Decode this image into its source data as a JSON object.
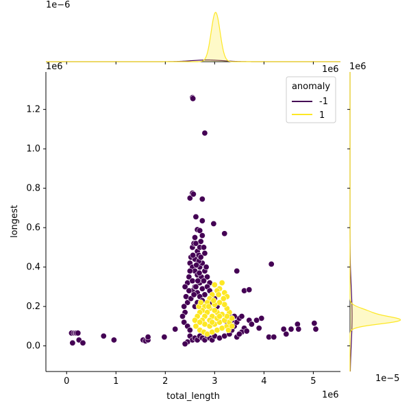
{
  "chart_data": {
    "type": "scatter",
    "title": "",
    "xlabel": "total_length",
    "ylabel": "longest",
    "x_offset_label": "1e6",
    "y_offset_label": "1e6",
    "top_marginal_offset_label": "1e−6",
    "right_top_offset_label": "1e6",
    "right_marginal_offset_label": "1e−5",
    "top_right_offset_label": "1e6",
    "xlim": [
      -0.42,
      5.55
    ],
    "ylim": [
      -0.13,
      1.39
    ],
    "x_ticks": [
      0,
      1,
      2,
      3,
      4,
      5
    ],
    "x_tick_labels": [
      "0",
      "1",
      "2",
      "3",
      "4",
      "5"
    ],
    "y_ticks": [
      0.0,
      0.2,
      0.4,
      0.6,
      0.8,
      1.0,
      1.2
    ],
    "y_tick_labels": [
      "0.0",
      "0.2",
      "0.4",
      "0.6",
      "0.8",
      "1.0",
      "1.2"
    ],
    "grid": false,
    "legend": {
      "title": "anomaly",
      "placement": "top-right",
      "entries": [
        {
          "label": "-1",
          "color": "#440154"
        },
        {
          "label": "1",
          "color": "#fde725"
        }
      ]
    },
    "series": [
      {
        "name": "-1",
        "color": "#440154",
        "points": [
          [
            0.1,
            0.065
          ],
          [
            0.12,
            0.015
          ],
          [
            0.15,
            0.065
          ],
          [
            0.18,
            0.065
          ],
          [
            0.2,
            0.065
          ],
          [
            0.23,
            0.065
          ],
          [
            0.25,
            0.03
          ],
          [
            0.33,
            0.015
          ],
          [
            0.75,
            0.05
          ],
          [
            0.96,
            0.03
          ],
          [
            1.55,
            0.03
          ],
          [
            1.6,
            0.025
          ],
          [
            1.65,
            0.03
          ],
          [
            1.65,
            0.045
          ],
          [
            1.98,
            0.045
          ],
          [
            2.2,
            0.085
          ],
          [
            2.55,
            1.26
          ],
          [
            2.56,
            1.255
          ],
          [
            2.8,
            1.08
          ],
          [
            2.55,
            0.775
          ],
          [
            2.5,
            0.75
          ],
          [
            2.57,
            0.77
          ],
          [
            2.75,
            0.745
          ],
          [
            2.62,
            0.655
          ],
          [
            2.75,
            0.635
          ],
          [
            2.65,
            0.59
          ],
          [
            2.7,
            0.585
          ],
          [
            2.98,
            0.62
          ],
          [
            3.2,
            0.57
          ],
          [
            3.45,
            0.38
          ],
          [
            3.6,
            0.28
          ],
          [
            3.7,
            0.285
          ],
          [
            4.15,
            0.415
          ],
          [
            3.95,
            0.14
          ],
          [
            3.85,
            0.13
          ],
          [
            3.9,
            0.09
          ],
          [
            4.1,
            0.045
          ],
          [
            4.2,
            0.045
          ],
          [
            4.4,
            0.085
          ],
          [
            4.45,
            0.06
          ],
          [
            4.55,
            0.085
          ],
          [
            4.68,
            0.11
          ],
          [
            4.7,
            0.085
          ],
          [
            5.02,
            0.115
          ],
          [
            5.05,
            0.085
          ],
          [
            3.7,
            0.13
          ],
          [
            3.75,
            0.11
          ],
          [
            3.6,
            0.09
          ],
          [
            3.55,
            0.07
          ],
          [
            3.45,
            0.045
          ],
          [
            3.5,
            0.06
          ],
          [
            3.65,
            0.075
          ],
          [
            2.45,
            0.32
          ],
          [
            2.4,
            0.3
          ],
          [
            2.48,
            0.35
          ],
          [
            2.5,
            0.42
          ],
          [
            2.52,
            0.45
          ],
          [
            2.55,
            0.5
          ],
          [
            2.58,
            0.52
          ],
          [
            2.6,
            0.55
          ],
          [
            2.62,
            0.52
          ],
          [
            2.65,
            0.48
          ],
          [
            2.68,
            0.46
          ],
          [
            2.7,
            0.5
          ],
          [
            2.72,
            0.53
          ],
          [
            2.75,
            0.56
          ],
          [
            2.78,
            0.5
          ],
          [
            2.8,
            0.47
          ],
          [
            2.55,
            0.4
          ],
          [
            2.6,
            0.38
          ],
          [
            2.65,
            0.36
          ],
          [
            2.7,
            0.4
          ],
          [
            2.75,
            0.42
          ],
          [
            2.8,
            0.38
          ],
          [
            2.85,
            0.35
          ],
          [
            2.9,
            0.32
          ],
          [
            2.42,
            0.25
          ],
          [
            2.45,
            0.22
          ],
          [
            2.38,
            0.2
          ],
          [
            2.4,
            0.17
          ],
          [
            2.35,
            0.15
          ],
          [
            2.38,
            0.12
          ],
          [
            2.45,
            0.1
          ],
          [
            2.5,
            0.08
          ],
          [
            2.55,
            0.28
          ],
          [
            2.6,
            0.3
          ],
          [
            2.65,
            0.27
          ],
          [
            2.7,
            0.32
          ],
          [
            2.75,
            0.29
          ],
          [
            2.8,
            0.26
          ],
          [
            2.85,
            0.3
          ],
          [
            2.9,
            0.28
          ],
          [
            2.95,
            0.22
          ],
          [
            3.0,
            0.24
          ],
          [
            3.05,
            0.2
          ],
          [
            2.5,
            0.05
          ],
          [
            2.55,
            0.03
          ],
          [
            2.6,
            0.04
          ],
          [
            2.45,
            0.02
          ],
          [
            2.4,
            0.01
          ],
          [
            2.65,
            0.03
          ],
          [
            2.7,
            0.05
          ],
          [
            2.75,
            0.04
          ],
          [
            2.8,
            0.03
          ],
          [
            2.85,
            0.05
          ],
          [
            2.9,
            0.04
          ],
          [
            2.95,
            0.03
          ],
          [
            3.0,
            0.05
          ],
          [
            3.1,
            0.04
          ],
          [
            3.2,
            0.05
          ],
          [
            3.3,
            0.06
          ],
          [
            3.35,
            0.08
          ],
          [
            3.4,
            0.1
          ],
          [
            3.45,
            0.12
          ],
          [
            3.5,
            0.14
          ],
          [
            3.55,
            0.15
          ],
          [
            3.3,
            0.15
          ],
          [
            3.25,
            0.12
          ],
          [
            3.35,
            0.13
          ],
          [
            3.4,
            0.15
          ],
          [
            2.6,
            0.2
          ],
          [
            2.65,
            0.22
          ],
          [
            2.7,
            0.25
          ],
          [
            2.75,
            0.23
          ],
          [
            2.5,
            0.38
          ],
          [
            2.55,
            0.33
          ],
          [
            2.6,
            0.44
          ],
          [
            2.68,
            0.43
          ],
          [
            2.73,
            0.35
          ],
          [
            2.78,
            0.33
          ],
          [
            2.83,
            0.4
          ],
          [
            2.62,
            0.3
          ],
          [
            2.48,
            0.28
          ],
          [
            2.52,
            0.24
          ],
          [
            2.58,
            0.26
          ],
          [
            2.66,
            0.33
          ],
          [
            2.72,
            0.45
          ],
          [
            2.56,
            0.46
          ],
          [
            2.63,
            0.41
          ],
          [
            2.69,
            0.37
          ]
        ]
      },
      {
        "name": "1",
        "color": "#fde725",
        "points": [
          [
            3.15,
            0.32
          ],
          [
            3.1,
            0.29
          ],
          [
            3.2,
            0.27
          ],
          [
            3.25,
            0.25
          ],
          [
            3.0,
            0.31
          ],
          [
            3.05,
            0.28
          ],
          [
            2.95,
            0.26
          ],
          [
            2.9,
            0.24
          ],
          [
            2.85,
            0.22
          ],
          [
            2.8,
            0.2
          ],
          [
            2.75,
            0.18
          ],
          [
            2.7,
            0.17
          ],
          [
            2.65,
            0.15
          ],
          [
            2.6,
            0.13
          ],
          [
            2.62,
            0.1
          ],
          [
            2.7,
            0.08
          ],
          [
            2.78,
            0.07
          ],
          [
            2.85,
            0.06
          ],
          [
            2.95,
            0.07
          ],
          [
            3.05,
            0.08
          ],
          [
            3.15,
            0.09
          ],
          [
            3.25,
            0.1
          ],
          [
            3.3,
            0.12
          ],
          [
            3.35,
            0.14
          ],
          [
            3.3,
            0.17
          ],
          [
            3.25,
            0.19
          ],
          [
            3.2,
            0.21
          ],
          [
            3.1,
            0.22
          ],
          [
            3.0,
            0.21
          ],
          [
            2.9,
            0.19
          ],
          [
            2.85,
            0.17
          ],
          [
            2.8,
            0.15
          ],
          [
            2.75,
            0.13
          ],
          [
            2.8,
            0.11
          ],
          [
            2.9,
            0.1
          ],
          [
            3.0,
            0.11
          ],
          [
            3.1,
            0.12
          ],
          [
            3.2,
            0.13
          ],
          [
            3.25,
            0.15
          ],
          [
            3.15,
            0.16
          ],
          [
            3.05,
            0.17
          ],
          [
            2.95,
            0.15
          ],
          [
            2.9,
            0.13
          ],
          [
            2.95,
            0.12
          ],
          [
            3.05,
            0.14
          ],
          [
            3.1,
            0.15
          ],
          [
            3.0,
            0.18
          ],
          [
            2.88,
            0.2
          ],
          [
            3.18,
            0.24
          ],
          [
            3.08,
            0.26
          ],
          [
            2.98,
            0.23
          ],
          [
            2.7,
            0.12
          ],
          [
            2.68,
            0.2
          ],
          [
            2.72,
            0.22
          ],
          [
            3.28,
            0.08
          ],
          [
            3.35,
            0.1
          ]
        ]
      }
    ],
    "top_marginal": {
      "type": "kde",
      "series": [
        {
          "name": "-1",
          "color": "#440154",
          "peak_x": 2.85
        },
        {
          "name": "1",
          "color": "#fde725",
          "peak_x": 3.02
        }
      ]
    },
    "right_marginal": {
      "type": "kde",
      "series": [
        {
          "name": "-1",
          "color": "#440154",
          "peak_y": 0.15
        },
        {
          "name": "1",
          "color": "#fde725",
          "peak_y": 0.13
        }
      ]
    }
  }
}
